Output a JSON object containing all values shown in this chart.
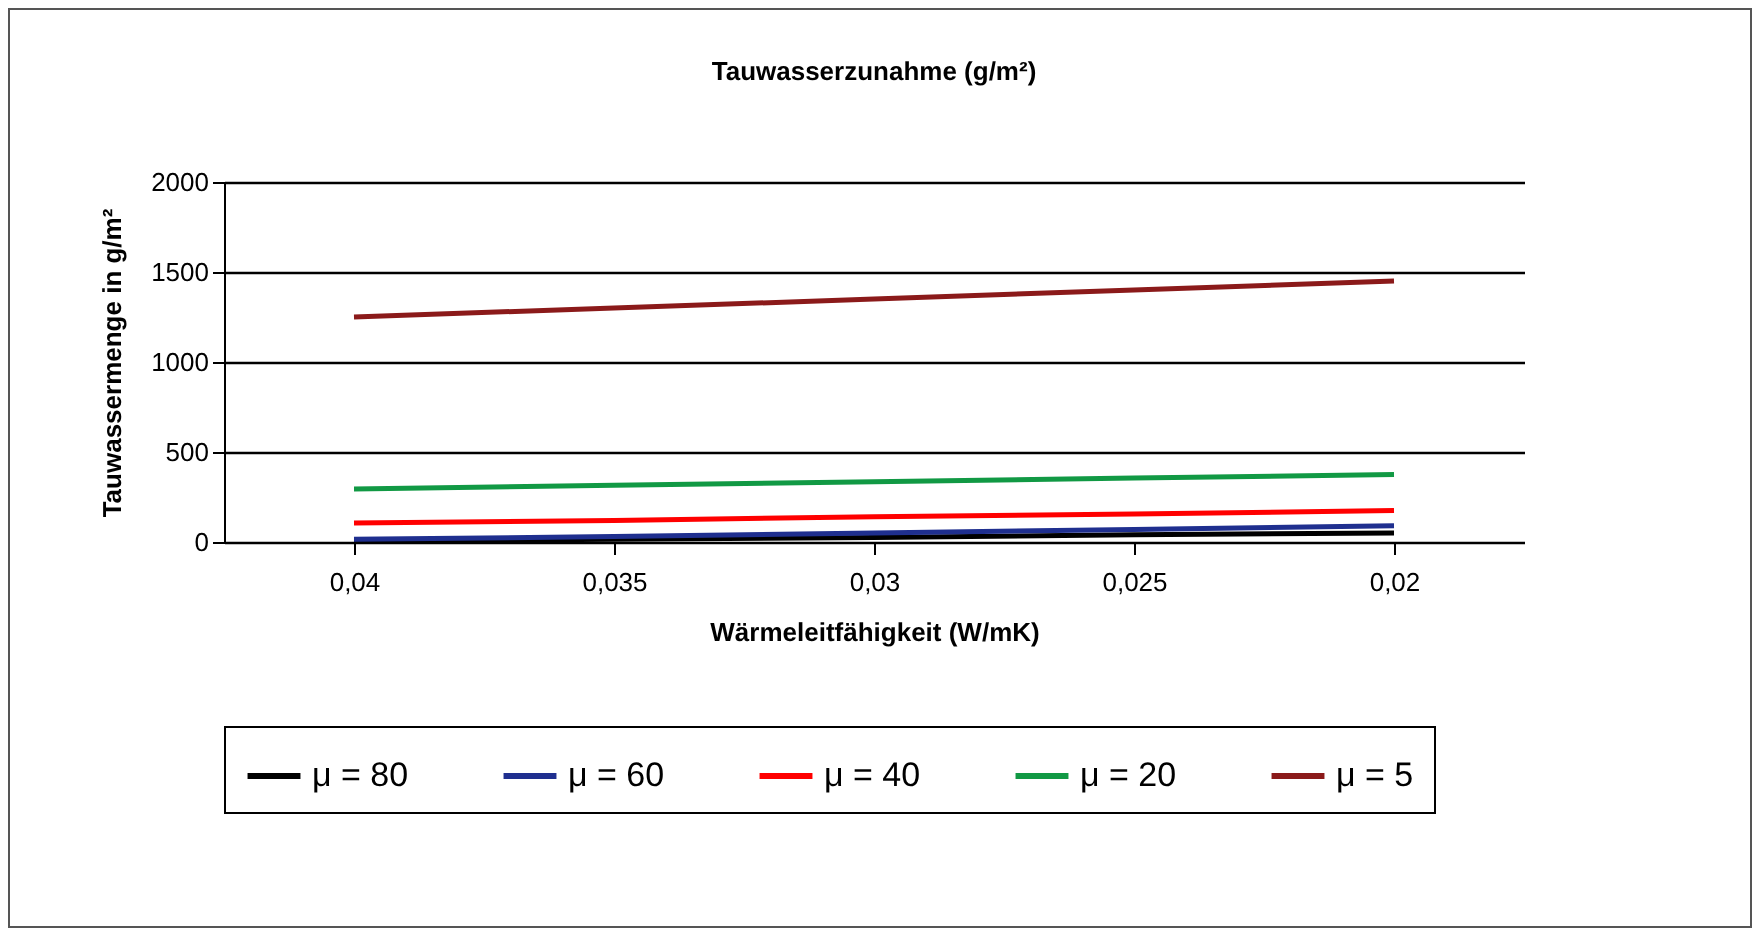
{
  "chart_data": {
    "type": "line",
    "title": "Tauwasserzunahme (g/m²)",
    "xlabel": "Wärmeleitfähigkeit (W/mK)",
    "ylabel": "Tauwassermenge in g/m²",
    "categories": [
      "0,04",
      "0,035",
      "0,03",
      "0,025",
      "0,02"
    ],
    "series": [
      {
        "name": "μ = 80",
        "color": "#000000",
        "values": [
          5,
          15,
          25,
          40,
          50
        ]
      },
      {
        "name": "μ = 60",
        "color": "#1f2f8f",
        "values": [
          15,
          30,
          50,
          70,
          90
        ]
      },
      {
        "name": "μ = 40",
        "color": "#ff0000",
        "values": [
          105,
          120,
          140,
          155,
          175
        ]
      },
      {
        "name": "μ = 20",
        "color": "#119944",
        "values": [
          295,
          315,
          335,
          355,
          375
        ]
      },
      {
        "name": "μ = 5",
        "color": "#8b1a1a",
        "values": [
          1250,
          1300,
          1350,
          1400,
          1450
        ]
      }
    ],
    "ylim": [
      0,
      2000
    ],
    "yticks": [
      0,
      500,
      1000,
      1500,
      2000
    ],
    "grid": "y",
    "legend": "bottom",
    "marker": "none",
    "line_style": "solid"
  }
}
